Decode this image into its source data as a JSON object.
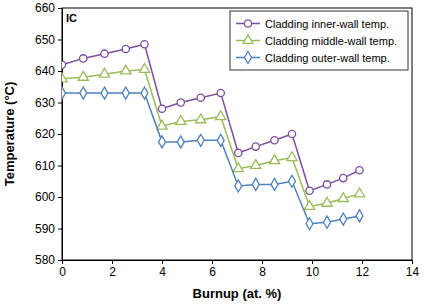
{
  "chart_data": {
    "type": "line",
    "x_label": "Burnup (at. %)",
    "y_label": "Temperature (°C)",
    "annotations": [
      "IC"
    ],
    "x": [
      0,
      0.85,
      1.7,
      2.55,
      3.3,
      4.0,
      4.75,
      5.55,
      6.35,
      7.05,
      7.75,
      8.5,
      9.2,
      9.9,
      10.6,
      11.25,
      11.9
    ],
    "series": [
      {
        "name": "Cladding inner-wall temp.",
        "color": "#7b4fa0",
        "marker": "circle",
        "values": [
          642,
          644,
          645.5,
          647,
          648.5,
          628,
          630,
          631.5,
          633,
          614,
          616,
          618,
          620,
          602,
          604,
          606,
          608.5
        ]
      },
      {
        "name": "Cladding middle-wall temp.",
        "color": "#9bbb59",
        "marker": "triangle",
        "values": [
          637.5,
          638,
          639,
          640,
          640.5,
          622.5,
          624,
          624.5,
          625.5,
          609,
          610,
          611.5,
          612.5,
          597,
          598,
          599.5,
          601
        ]
      },
      {
        "name": "Cladding outer-wall temp.",
        "color": "#4f81bd",
        "marker": "diamond",
        "values": [
          633,
          633,
          633,
          633,
          633,
          617.5,
          617.5,
          618,
          618,
          603.5,
          604,
          604,
          605,
          591.5,
          592,
          593,
          594
        ]
      }
    ],
    "xlim": [
      0,
      14
    ],
    "xticks": [
      0,
      2,
      4,
      6,
      8,
      10,
      12,
      14
    ],
    "ylim": [
      580,
      660
    ],
    "yticks": [
      580,
      590,
      600,
      610,
      620,
      630,
      640,
      650,
      660
    ],
    "grid": false,
    "legend": "top-right"
  }
}
